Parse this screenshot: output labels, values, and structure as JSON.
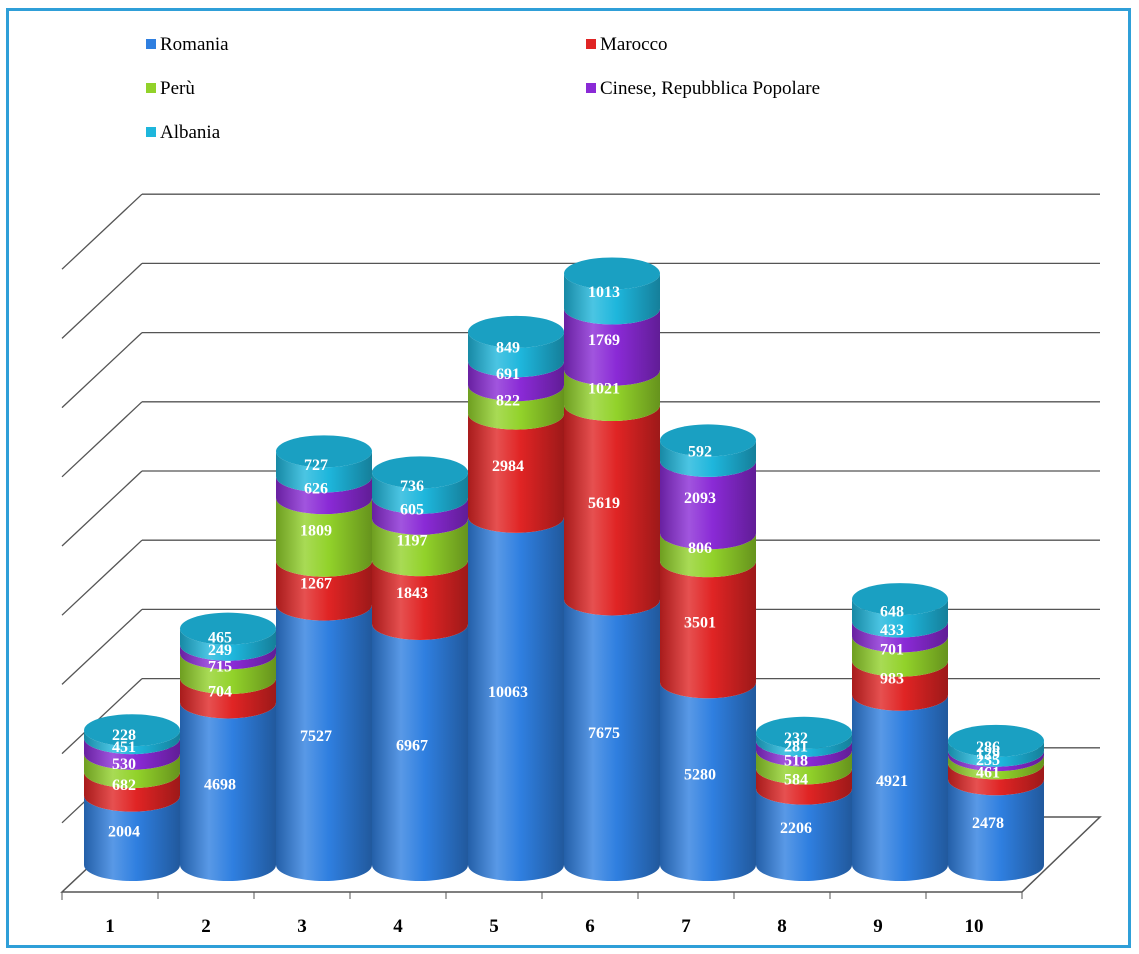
{
  "chart_data": {
    "type": "bar",
    "stacked": true,
    "style": "3d-cylinder",
    "categories": [
      "1",
      "2",
      "3",
      "4",
      "5",
      "6",
      "7",
      "8",
      "9",
      "10"
    ],
    "series": [
      {
        "name": "Romania",
        "color": "#2f7fe0",
        "values": [
          2004,
          4698,
          7527,
          6967,
          10063,
          7675,
          5280,
          2206,
          4921,
          2478
        ]
      },
      {
        "name": "Marocco",
        "color": "#e02424",
        "values": [
          682,
          704,
          1267,
          1843,
          2984,
          5619,
          3501,
          584,
          983,
          461
        ]
      },
      {
        "name": "Perù",
        "color": "#92d22a",
        "values": [
          530,
          715,
          1809,
          1197,
          822,
          1021,
          806,
          518,
          701,
          235
        ]
      },
      {
        "name": "Cinese, Repubblica Popolare",
        "color": "#8a2ad6",
        "values": [
          451,
          249,
          626,
          605,
          691,
          1769,
          2093,
          281,
          433,
          129
        ]
      },
      {
        "name": "Albania",
        "color": "#1eb6dc",
        "values": [
          228,
          465,
          727,
          736,
          849,
          1013,
          592,
          232,
          648,
          286
        ]
      }
    ],
    "legend_position": "top",
    "grid": true
  }
}
